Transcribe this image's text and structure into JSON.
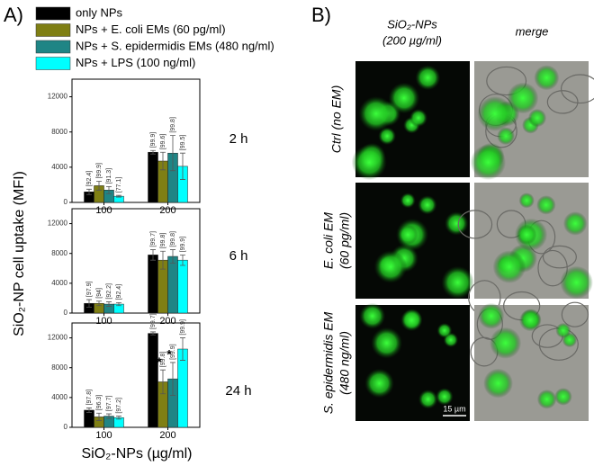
{
  "panel_a_label": "A)",
  "panel_b_label": "B)",
  "chart_data": [
    {
      "type": "bar",
      "title": "2 h",
      "y_label": "SiO₂-NP cell uptake (MFI)",
      "categories": [
        "100",
        "200"
      ],
      "ylim": [
        0,
        14000
      ],
      "yticks": [
        0,
        4000,
        8000,
        12000
      ],
      "series": [
        {
          "name": "only NPs",
          "color": "#000000",
          "values": [
            1200,
            5700
          ],
          "errors": [
            300,
            200
          ],
          "pct_labels": [
            "[92.4]",
            "[99.9]"
          ]
        },
        {
          "name": "NPs + E. coli EMs (60 pg/ml)",
          "color": "#7f7f14",
          "values": [
            1900,
            4700
          ],
          "errors": [
            500,
            1000
          ],
          "pct_labels": [
            "[99.9]",
            "[99.6]"
          ]
        },
        {
          "name": "NPs + S. epidermidis EMs (480 ng/ml)",
          "color": "#1f8585",
          "values": [
            1400,
            5600
          ],
          "errors": [
            400,
            2000
          ],
          "pct_labels": [
            "[91.3]",
            "[99.8]"
          ]
        },
        {
          "name": "NPs + LPS (100 ng/ml)",
          "color": "#00ffff",
          "values": [
            700,
            4100
          ],
          "errors": [
            100,
            1500
          ],
          "pct_labels": [
            "[77.1]",
            "[99.5]"
          ]
        }
      ]
    },
    {
      "type": "bar",
      "title": "6 h",
      "categories": [
        "100",
        "200"
      ],
      "ylim": [
        0,
        14000
      ],
      "yticks": [
        0,
        4000,
        8000,
        12000
      ],
      "series": [
        {
          "color": "#000000",
          "values": [
            1300,
            7800
          ],
          "errors": [
            500,
            700
          ],
          "pct_labels": [
            "[97.9]",
            "[99.7]"
          ]
        },
        {
          "color": "#7f7f14",
          "values": [
            1300,
            7100
          ],
          "errors": [
            300,
            1200
          ],
          "pct_labels": [
            "[94]",
            "[99.8]"
          ]
        },
        {
          "color": "#1f8585",
          "values": [
            1200,
            7600
          ],
          "errors": [
            300,
            900
          ],
          "pct_labels": [
            "[92.2]",
            "[99.8]"
          ]
        },
        {
          "color": "#00ffff",
          "values": [
            1200,
            7100
          ],
          "errors": [
            200,
            700
          ],
          "pct_labels": [
            "[92.4]",
            "[99.9]"
          ]
        }
      ]
    },
    {
      "type": "bar",
      "title": "24 h",
      "x_label": "SiO₂-NPs (µg/ml)",
      "categories": [
        "100",
        "200"
      ],
      "ylim": [
        0,
        14000
      ],
      "yticks": [
        0,
        4000,
        8000,
        12000
      ],
      "series": [
        {
          "color": "#000000",
          "values": [
            2300,
            12600
          ],
          "errors": [
            300,
            200
          ],
          "pct_labels": [
            "[97.8]",
            "[99.7]"
          ]
        },
        {
          "color": "#7f7f14",
          "values": [
            1400,
            6100
          ],
          "errors": [
            500,
            1600
          ],
          "pct_labels": [
            "[96.3]",
            "[99.8]"
          ],
          "asterisks": [
            null,
            "*"
          ]
        },
        {
          "color": "#1f8585",
          "values": [
            1500,
            6500
          ],
          "errors": [
            300,
            2200
          ],
          "pct_labels": [
            "[97.7]",
            "[99.9]"
          ],
          "asterisks": [
            null,
            "*"
          ]
        },
        {
          "color": "#00ffff",
          "values": [
            1300,
            10500
          ],
          "errors": [
            200,
            1500
          ],
          "pct_labels": [
            "[97.2]",
            "[99.9]"
          ]
        }
      ]
    }
  ],
  "panel_b": {
    "column_headers": [
      "SiO₂-NPs",
      "(200 µg/ml)",
      "merge"
    ],
    "row_labels": [
      [
        "Ctrl (no EM)"
      ],
      [
        "E. coli EM",
        "(60 pg/ml)"
      ],
      [
        "S. epidermidis  EM",
        "(480 ng/ml)"
      ]
    ],
    "scale_bar": "15 µm"
  }
}
